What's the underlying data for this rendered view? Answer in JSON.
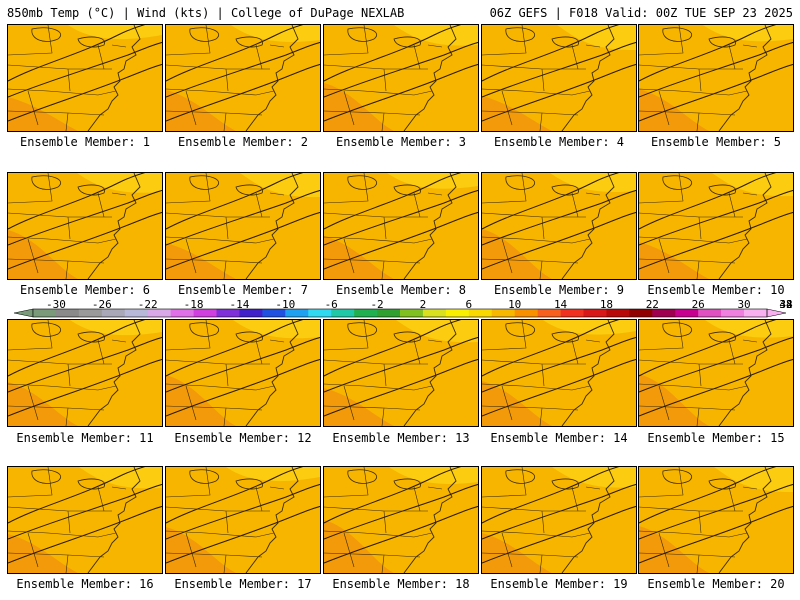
{
  "header": {
    "left": "850mb Temp (°C) | Wind (kts) | College of DuPage NEXLAB",
    "right": "06Z GEFS | F018 Valid: 00Z TUE SEP 23 2025"
  },
  "members": [
    {
      "label": "Ensemble Member: 1"
    },
    {
      "label": "Ensemble Member: 2"
    },
    {
      "label": "Ensemble Member: 3"
    },
    {
      "label": "Ensemble Member: 4"
    },
    {
      "label": "Ensemble Member: 5"
    },
    {
      "label": "Ensemble Member: 6"
    },
    {
      "label": "Ensemble Member: 7"
    },
    {
      "label": "Ensemble Member: 8"
    },
    {
      "label": "Ensemble Member: 9"
    },
    {
      "label": "Ensemble Member: 10"
    },
    {
      "label": "Ensemble Member: 11"
    },
    {
      "label": "Ensemble Member: 12"
    },
    {
      "label": "Ensemble Member: 13"
    },
    {
      "label": "Ensemble Member: 14"
    },
    {
      "label": "Ensemble Member: 15"
    },
    {
      "label": "Ensemble Member: 16"
    },
    {
      "label": "Ensemble Member: 17"
    },
    {
      "label": "Ensemble Member: 18"
    },
    {
      "label": "Ensemble Member: 19"
    },
    {
      "label": "Ensemble Member: 20"
    }
  ],
  "colorbar": {
    "labels": [
      "-30",
      "-26",
      "-22",
      "-18",
      "-14",
      "-10",
      "-6",
      "-2",
      "2",
      "6",
      "10",
      "14",
      "18",
      "22",
      "26",
      "30",
      "34",
      "38",
      "42"
    ],
    "colors": [
      "#7a9a7a",
      "#8a8a8a",
      "#9a9a9a",
      "#a8a8b8",
      "#b8b8d8",
      "#d8a8e8",
      "#e070e8",
      "#d040e0",
      "#8030d8",
      "#4020c8",
      "#2050e0",
      "#20a0f0",
      "#30d8f0",
      "#20c8a8",
      "#20b050",
      "#30a030",
      "#80c020",
      "#d8e020",
      "#f8f000",
      "#f8d800",
      "#f8b800",
      "#f89000",
      "#f86020",
      "#f03020",
      "#d81818",
      "#b80808",
      "#900000",
      "#a00050",
      "#c80090",
      "#e050c0",
      "#f080e0",
      "#f8b0f0"
    ]
  },
  "map_colors": {
    "base": "#f7b500",
    "warm": "#f39a0a",
    "cool": "#fbcc10",
    "lines": "#3a2a00"
  }
}
